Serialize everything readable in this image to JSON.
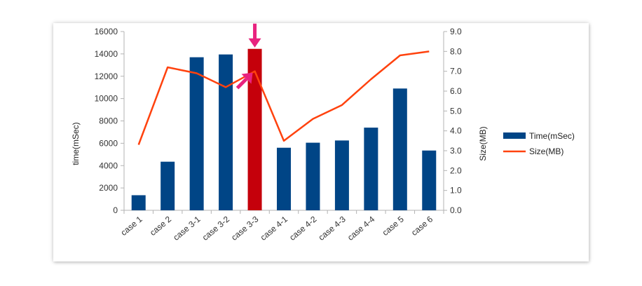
{
  "chart_data": {
    "type": "bar",
    "categories": [
      "case 1",
      "case 2",
      "case 3-1",
      "case 3-2",
      "case 3-3",
      "case 4-1",
      "case 4-2",
      "case 4-3",
      "case 4-4",
      "case 5",
      "case 6"
    ],
    "series": [
      {
        "name": "Time(mSec)",
        "type": "bar",
        "axis": "left",
        "color": "#004586",
        "values": [
          1350,
          4350,
          13700,
          13950,
          14450,
          5600,
          6050,
          6250,
          7400,
          10900,
          5350
        ]
      },
      {
        "name": "Size(MB)",
        "type": "line",
        "axis": "right",
        "color": "#ff420e",
        "values": [
          3.3,
          7.2,
          6.9,
          6.2,
          7.0,
          3.5,
          4.6,
          5.3,
          6.6,
          7.8,
          8.0
        ]
      }
    ],
    "highlight": {
      "category": "case 3-3",
      "color": "#c5000b",
      "arrow_color": "#e8237f"
    },
    "ylabel": "time(mSec)",
    "ylabel_right": "Size(MB)",
    "ylim": [
      0,
      16000
    ],
    "yticks": [
      "0",
      "2000",
      "4000",
      "6000",
      "8000",
      "10000",
      "12000",
      "14000",
      "16000"
    ],
    "ylim_right": [
      0,
      9
    ],
    "yticks_right": [
      "0.0",
      "1.0",
      "2.0",
      "3.0",
      "4.0",
      "5.0",
      "6.0",
      "7.0",
      "8.0",
      "9.0"
    ],
    "grid": false,
    "legend": "right"
  }
}
